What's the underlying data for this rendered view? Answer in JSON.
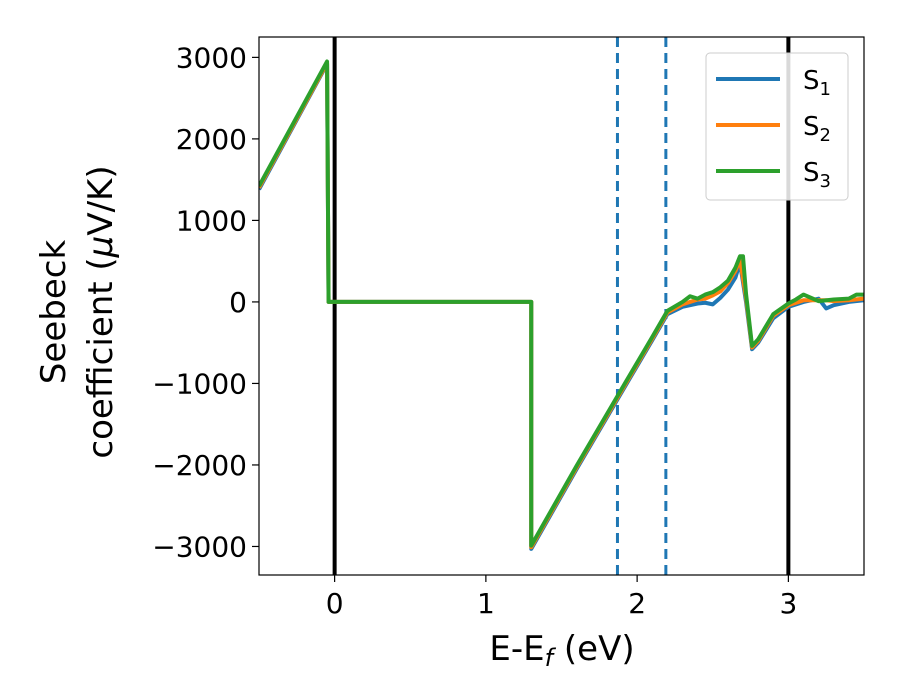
{
  "chart_data": {
    "type": "line",
    "xlabel": {
      "main": "E-E",
      "sub": "f",
      "unit": " (eV)"
    },
    "ylabel": {
      "line1": "Seebeck",
      "line2": "coefficient  (",
      "mu": "μ",
      "line2_end": "V/K)"
    },
    "xlim": [
      -0.5,
      3.5
    ],
    "ylim": [
      -3350,
      3250
    ],
    "x_ticks": [
      0,
      1,
      2,
      3
    ],
    "x_tick_labels": [
      "0",
      "1",
      "2",
      "3"
    ],
    "y_ticks": [
      -3000,
      -2000,
      -1000,
      0,
      1000,
      2000,
      3000
    ],
    "y_tick_labels": [
      "−3000",
      "−2000",
      "−1000",
      "0",
      "1000",
      "2000",
      "3000"
    ],
    "vertical_lines": [
      {
        "x": 0.0,
        "style": "solid",
        "color": "#000000"
      },
      {
        "x": 3.0,
        "style": "solid",
        "color": "#000000"
      },
      {
        "x": 1.87,
        "style": "dashed",
        "color": "#1f77b4"
      },
      {
        "x": 2.19,
        "style": "dashed",
        "color": "#1f77b4"
      }
    ],
    "legend": {
      "position": "top-right"
    },
    "series": [
      {
        "name": "S",
        "sub": "1",
        "color": "#1f77b4",
        "points": [
          [
            -0.5,
            1380
          ],
          [
            -0.05,
            2920
          ],
          [
            -0.04,
            0
          ],
          [
            1.3,
            0
          ],
          [
            1.3,
            -3030
          ],
          [
            1.6,
            -2050
          ],
          [
            1.9,
            -1100
          ],
          [
            2.1,
            -470
          ],
          [
            2.2,
            -150
          ],
          [
            2.3,
            -60
          ],
          [
            2.4,
            -20
          ],
          [
            2.45,
            -10
          ],
          [
            2.5,
            -30
          ],
          [
            2.55,
            50
          ],
          [
            2.6,
            150
          ],
          [
            2.65,
            300
          ],
          [
            2.68,
            480
          ],
          [
            2.72,
            0
          ],
          [
            2.76,
            -580
          ],
          [
            2.8,
            -500
          ],
          [
            2.9,
            -200
          ],
          [
            3.0,
            -60
          ],
          [
            3.1,
            0
          ],
          [
            3.2,
            40
          ],
          [
            3.25,
            -80
          ],
          [
            3.3,
            -40
          ],
          [
            3.4,
            0
          ],
          [
            3.5,
            20
          ]
        ]
      },
      {
        "name": "S",
        "sub": "2",
        "color": "#ff7f0e",
        "points": [
          [
            -0.5,
            1400
          ],
          [
            -0.05,
            2930
          ],
          [
            -0.04,
            0
          ],
          [
            1.3,
            0
          ],
          [
            1.3,
            -3010
          ],
          [
            1.6,
            -2030
          ],
          [
            1.9,
            -1080
          ],
          [
            2.1,
            -450
          ],
          [
            2.2,
            -130
          ],
          [
            2.3,
            -30
          ],
          [
            2.4,
            30
          ],
          [
            2.45,
            40
          ],
          [
            2.5,
            80
          ],
          [
            2.55,
            130
          ],
          [
            2.6,
            230
          ],
          [
            2.65,
            380
          ],
          [
            2.68,
            520
          ],
          [
            2.72,
            50
          ],
          [
            2.76,
            -560
          ],
          [
            2.8,
            -480
          ],
          [
            2.9,
            -170
          ],
          [
            3.0,
            -40
          ],
          [
            3.1,
            20
          ],
          [
            3.2,
            20
          ],
          [
            3.25,
            20
          ],
          [
            3.3,
            10
          ],
          [
            3.4,
            20
          ],
          [
            3.5,
            40
          ]
        ]
      },
      {
        "name": "S",
        "sub": "3",
        "color": "#2ca02c",
        "points": [
          [
            -0.5,
            1420
          ],
          [
            -0.05,
            2950
          ],
          [
            -0.04,
            0
          ],
          [
            1.3,
            0
          ],
          [
            1.3,
            -2990
          ],
          [
            1.6,
            -2010
          ],
          [
            1.9,
            -1060
          ],
          [
            2.1,
            -430
          ],
          [
            2.2,
            -110
          ],
          [
            2.3,
            0
          ],
          [
            2.35,
            70
          ],
          [
            2.4,
            40
          ],
          [
            2.45,
            90
          ],
          [
            2.5,
            120
          ],
          [
            2.55,
            180
          ],
          [
            2.6,
            260
          ],
          [
            2.65,
            420
          ],
          [
            2.68,
            560
          ],
          [
            2.7,
            560
          ],
          [
            2.72,
            100
          ],
          [
            2.76,
            -540
          ],
          [
            2.8,
            -460
          ],
          [
            2.9,
            -150
          ],
          [
            3.0,
            -20
          ],
          [
            3.05,
            30
          ],
          [
            3.1,
            90
          ],
          [
            3.2,
            10
          ],
          [
            3.3,
            30
          ],
          [
            3.4,
            40
          ],
          [
            3.45,
            90
          ],
          [
            3.5,
            90
          ]
        ]
      }
    ]
  }
}
